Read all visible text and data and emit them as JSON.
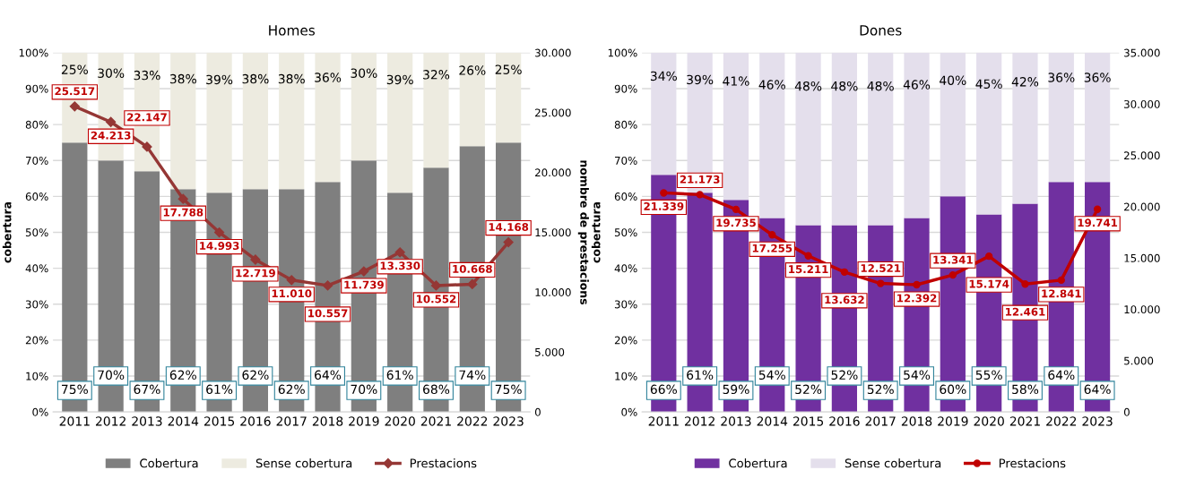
{
  "chart_data": [
    {
      "type": "bar",
      "title": "Homes",
      "ylabel": "cobertura",
      "y2label": "nombre de prestacions",
      "stacked": true,
      "legend": "bottom",
      "grid": "y",
      "categories": [
        "2011",
        "2012",
        "2013",
        "2014",
        "2015",
        "2016",
        "2017",
        "2018",
        "2019",
        "2020",
        "2021",
        "2022",
        "2023"
      ],
      "ylim": [
        0,
        100
      ],
      "yticks": [
        {
          "value": 0,
          "label": "0%"
        },
        {
          "value": 10,
          "label": "10%"
        },
        {
          "value": 20,
          "label": "20%"
        },
        {
          "value": 30,
          "label": "30%"
        },
        {
          "value": 40,
          "label": "40%"
        },
        {
          "value": 50,
          "label": "50%"
        },
        {
          "value": 60,
          "label": "60%"
        },
        {
          "value": 70,
          "label": "70%"
        },
        {
          "value": 80,
          "label": "80%"
        },
        {
          "value": 90,
          "label": "90%"
        },
        {
          "value": 100,
          "label": "100%"
        }
      ],
      "y2lim": [
        0,
        30000
      ],
      "y2ticks": [
        {
          "value": 0,
          "label": "0"
        },
        {
          "value": 5000,
          "label": "5.000"
        },
        {
          "value": 10000,
          "label": "10.000"
        },
        {
          "value": 15000,
          "label": "15.000"
        },
        {
          "value": 20000,
          "label": "20.000"
        },
        {
          "value": 25000,
          "label": "25.000"
        },
        {
          "value": 30000,
          "label": "30.000"
        }
      ],
      "series": [
        {
          "name": "Cobertura",
          "color": "#7f7f7f",
          "values": [
            75,
            70,
            67,
            62,
            61,
            62,
            62,
            64,
            70,
            61,
            68,
            74,
            75
          ],
          "value_labels": [
            "75%",
            "70%",
            "67%",
            "62%",
            "61%",
            "62%",
            "62%",
            "64%",
            "70%",
            "61%",
            "68%",
            "74%",
            "75%"
          ]
        },
        {
          "name": "Sense cobertura",
          "color": "#edebe0",
          "values": [
            25,
            30,
            33,
            38,
            39,
            38,
            38,
            36,
            30,
            39,
            32,
            26,
            25
          ],
          "value_labels": [
            "25%",
            "30%",
            "33%",
            "38%",
            "39%",
            "38%",
            "38%",
            "36%",
            "30%",
            "39%",
            "32%",
            "26%",
            "25%"
          ]
        },
        {
          "name": "Prestacions",
          "type": "line",
          "axis": "y2",
          "color": "#953735",
          "marker": "diamond",
          "values": [
            25517,
            24213,
            22147,
            17788,
            14993,
            12719,
            11010,
            10557,
            11739,
            13330,
            10552,
            10668,
            14168
          ],
          "value_labels": [
            "25.517",
            "24.213",
            "22.147",
            "17.788",
            "14.993",
            "12.719",
            "11.010",
            "10.557",
            "11.739",
            "13.330",
            "10.552",
            "10.668",
            "14.168"
          ]
        }
      ]
    },
    {
      "type": "bar",
      "title": "Dones",
      "ylabel": "cobertura",
      "stacked": true,
      "legend": "bottom",
      "grid": "y",
      "categories": [
        "2011",
        "2012",
        "2013",
        "2014",
        "2015",
        "2016",
        "2017",
        "2018",
        "2019",
        "2020",
        "2021",
        "2022",
        "2023"
      ],
      "ylim": [
        0,
        100
      ],
      "yticks": [
        {
          "value": 0,
          "label": "0%"
        },
        {
          "value": 10,
          "label": "10%"
        },
        {
          "value": 20,
          "label": "20%"
        },
        {
          "value": 30,
          "label": "30%"
        },
        {
          "value": 40,
          "label": "40%"
        },
        {
          "value": 50,
          "label": "50%"
        },
        {
          "value": 60,
          "label": "60%"
        },
        {
          "value": 70,
          "label": "70%"
        },
        {
          "value": 80,
          "label": "80%"
        },
        {
          "value": 90,
          "label": "90%"
        },
        {
          "value": 100,
          "label": "100%"
        }
      ],
      "y2lim": [
        0,
        35000
      ],
      "y2ticks": [
        {
          "value": 0,
          "label": "0"
        },
        {
          "value": 5000,
          "label": "5.000"
        },
        {
          "value": 10000,
          "label": "10.000"
        },
        {
          "value": 15000,
          "label": "15.000"
        },
        {
          "value": 20000,
          "label": "20.000"
        },
        {
          "value": 25000,
          "label": "25.000"
        },
        {
          "value": 30000,
          "label": "30.000"
        },
        {
          "value": 35000,
          "label": "35.000"
        }
      ],
      "series": [
        {
          "name": "Cobertura",
          "color": "#7030a0",
          "values": [
            66,
            61,
            59,
            54,
            52,
            52,
            52,
            54,
            60,
            55,
            58,
            64,
            64
          ],
          "value_labels": [
            "66%",
            "61%",
            "59%",
            "54%",
            "52%",
            "52%",
            "52%",
            "54%",
            "60%",
            "55%",
            "58%",
            "64%",
            "64%"
          ]
        },
        {
          "name": "Sense cobertura",
          "color": "#e4dfec",
          "values": [
            34,
            39,
            41,
            46,
            48,
            48,
            48,
            46,
            40,
            45,
            42,
            36,
            36
          ],
          "value_labels": [
            "34%",
            "39%",
            "41%",
            "46%",
            "48%",
            "48%",
            "48%",
            "46%",
            "40%",
            "45%",
            "42%",
            "36%",
            "36%"
          ]
        },
        {
          "name": "Prestacions",
          "type": "line",
          "axis": "y2",
          "color": "#c00000",
          "marker": "circle",
          "values": [
            21339,
            21173,
            19735,
            17255,
            15211,
            13632,
            12521,
            12392,
            13341,
            15174,
            12461,
            12841,
            19741
          ],
          "value_labels": [
            "21.339",
            "21.173",
            "19.735",
            "17.255",
            "15.211",
            "13.632",
            "12.521",
            "12.392",
            "13.341",
            "15.174",
            "12.461",
            "12.841",
            "19.741"
          ]
        }
      ]
    }
  ]
}
